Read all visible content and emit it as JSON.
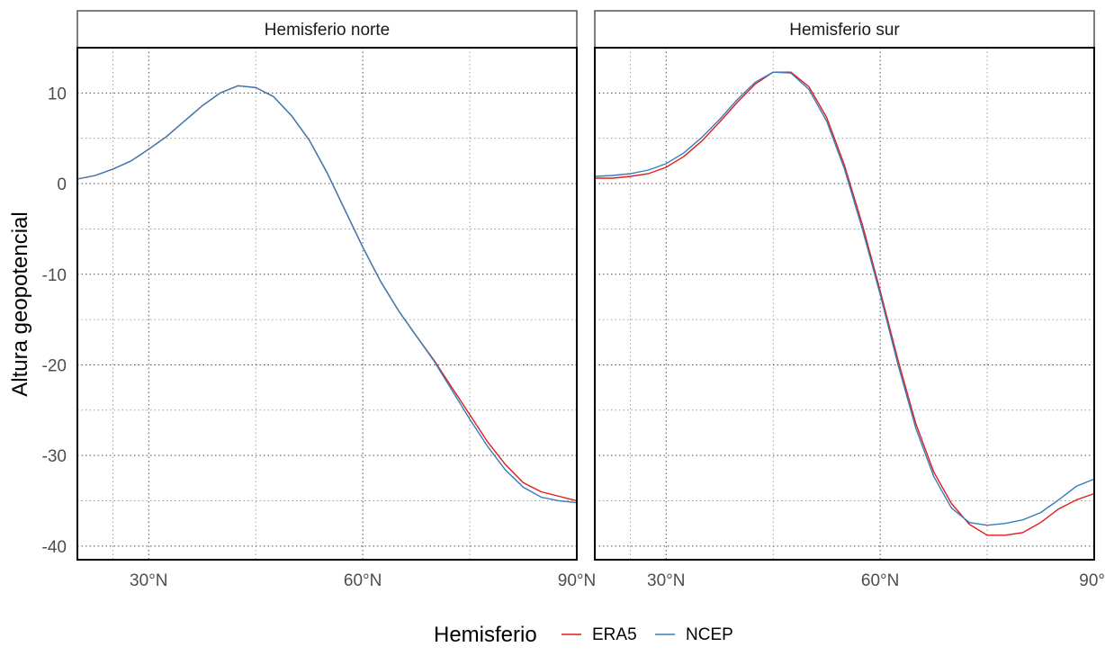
{
  "chart_data": {
    "type": "line",
    "ylabel": "Altura geopotencial",
    "xlabel": "",
    "xlim": [
      20,
      90
    ],
    "ylim": [
      -41.5,
      15
    ],
    "x_ticks": [
      30,
      60,
      90
    ],
    "x_tick_labels": [
      "30°N",
      "60°N",
      "90°N"
    ],
    "y_ticks": [
      10,
      0,
      -10,
      -20,
      -30,
      -40
    ],
    "y_tick_labels": [
      "10",
      "0",
      "-10",
      "-20",
      "-30",
      "-40"
    ],
    "grid": true,
    "legend": {
      "title": "Hemisferio",
      "position": "bottom",
      "entries": [
        {
          "label": "ERA5",
          "color": "#e41a1c"
        },
        {
          "label": "NCEP",
          "color": "#377eb8"
        }
      ]
    },
    "x": [
      20,
      22.5,
      25,
      27.5,
      30,
      32.5,
      35,
      37.5,
      40,
      42.5,
      45,
      47.5,
      50,
      52.5,
      55,
      57.5,
      60,
      62.5,
      65,
      67.5,
      70,
      72.5,
      75,
      77.5,
      80,
      82.5,
      85,
      87.5,
      90
    ],
    "panels": [
      {
        "title": "Hemisferio norte",
        "x_tick_labels": [
          "30°N",
          "60°N",
          "90°N"
        ],
        "series": [
          {
            "name": "ERA5",
            "color": "#e41a1c",
            "values": [
              0.5,
              0.9,
              1.6,
              2.5,
              3.8,
              5.2,
              6.9,
              8.6,
              10.0,
              10.8,
              10.6,
              9.6,
              7.5,
              4.8,
              1.2,
              -2.9,
              -7.0,
              -10.8,
              -14.0,
              -16.8,
              -19.5,
              -22.5,
              -25.5,
              -28.5,
              -31.0,
              -33.0,
              -34.0,
              -34.5,
              -35.0
            ]
          },
          {
            "name": "NCEP",
            "color": "#377eb8",
            "values": [
              0.5,
              0.9,
              1.6,
              2.5,
              3.8,
              5.2,
              6.9,
              8.6,
              10.0,
              10.8,
              10.6,
              9.6,
              7.5,
              4.8,
              1.2,
              -2.9,
              -7.0,
              -10.8,
              -14.0,
              -16.8,
              -19.6,
              -22.8,
              -26.0,
              -29.0,
              -31.6,
              -33.5,
              -34.6,
              -35.0,
              -35.2
            ]
          }
        ]
      },
      {
        "title": "Hemisferio sur",
        "x_tick_labels": [
          "30°N",
          "60°N",
          "90°"
        ],
        "series": [
          {
            "name": "ERA5",
            "color": "#e41a1c",
            "values": [
              0.6,
              0.6,
              0.8,
              1.1,
              1.8,
              3.0,
              4.7,
              6.8,
              9.0,
              11.0,
              12.3,
              12.3,
              10.7,
              7.3,
              2.0,
              -4.5,
              -11.8,
              -19.5,
              -26.5,
              -31.8,
              -35.3,
              -37.6,
              -38.8,
              -38.8,
              -38.5,
              -37.4,
              -35.9,
              -34.9,
              -34.2
            ]
          },
          {
            "name": "NCEP",
            "color": "#377eb8",
            "values": [
              0.8,
              0.9,
              1.1,
              1.5,
              2.2,
              3.4,
              5.1,
              7.1,
              9.3,
              11.2,
              12.3,
              12.2,
              10.4,
              6.9,
              1.6,
              -5.0,
              -12.2,
              -20.0,
              -27.0,
              -32.3,
              -35.8,
              -37.4,
              -37.7,
              -37.5,
              -37.1,
              -36.3,
              -34.9,
              -33.4,
              -32.6
            ]
          }
        ]
      }
    ]
  }
}
